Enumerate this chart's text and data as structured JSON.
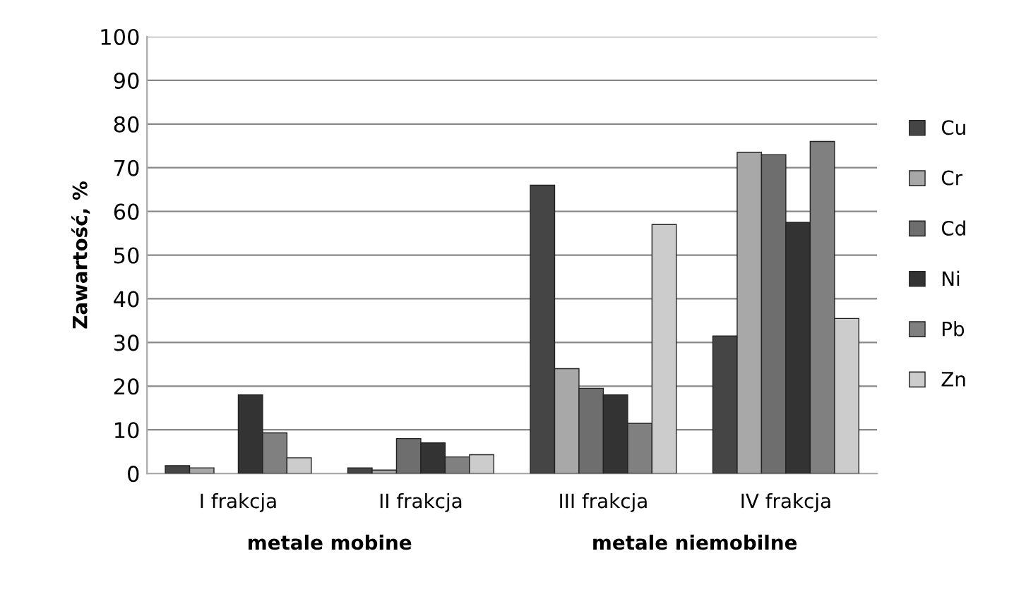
{
  "chart_data": {
    "type": "bar",
    "ylabel": "Zawartość, %",
    "categories": [
      "I frakcja",
      "II frakcja",
      "III frakcja",
      "IV frakcja"
    ],
    "series": [
      {
        "name": "Cu",
        "color": "#454545",
        "values": [
          1.8,
          1.3,
          66,
          31.5
        ]
      },
      {
        "name": "Cr",
        "color": "#a8a8a8",
        "values": [
          1.3,
          0.8,
          24,
          73.5
        ]
      },
      {
        "name": "Cd",
        "color": "#6e6e6e",
        "values": [
          null,
          8,
          19.5,
          73
        ]
      },
      {
        "name": "Ni",
        "color": "#333333",
        "values": [
          18,
          7,
          18,
          57.5
        ]
      },
      {
        "name": "Pb",
        "color": "#808080",
        "values": [
          9.3,
          3.8,
          11.5,
          76
        ]
      },
      {
        "name": "Zn",
        "color": "#cccccc",
        "values": [
          3.6,
          4.3,
          57,
          35.5
        ]
      }
    ],
    "annotations": [
      "metale mobine",
      "metale niemobilne"
    ],
    "ylim": [
      0,
      100
    ],
    "yticks": [
      0,
      10,
      20,
      30,
      40,
      50,
      60,
      70,
      80,
      90,
      100
    ],
    "grid": "y",
    "legend": "right"
  }
}
